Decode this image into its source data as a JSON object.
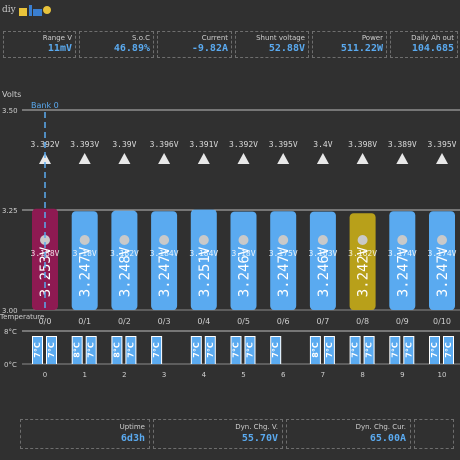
{
  "app": {
    "logo_text": "diy",
    "colors": {
      "accent": "#5aaaf0",
      "highlight_magenta": "#8e1a52",
      "highlight_gold": "#b8a01a"
    }
  },
  "stats": [
    {
      "label": "Range V",
      "value": "11mV"
    },
    {
      "label": "S.o.C",
      "value": "46.89%"
    },
    {
      "label": "Current",
      "value": "-9.82A"
    },
    {
      "label": "Shunt voltage",
      "value": "52.88V"
    },
    {
      "label": "Power",
      "value": "511.22W"
    },
    {
      "label": "Daily Ah out",
      "value": "104.685"
    }
  ],
  "footer": [
    {
      "label": "Uptime",
      "value": "6d3h"
    },
    {
      "label": "Dyn. Chg. V.",
      "value": "55.70V"
    },
    {
      "label": "Dyn. Chg. Cur.",
      "value": "65.00A"
    }
  ],
  "chart_data": {
    "type": "bar",
    "title": "",
    "ylabel": "Volts",
    "ylim": [
      3.0,
      3.5
    ],
    "yticks": [
      "3.50",
      "3.25",
      "3.00"
    ],
    "series_label": "Bank 0",
    "categories": [
      "0/0",
      "0/1",
      "0/2",
      "0/3",
      "0/4",
      "0/5",
      "0/6",
      "0/7",
      "0/8",
      "0/9",
      "0/10"
    ],
    "values": [
      3.253,
      3.247,
      3.248,
      3.247,
      3.251,
      3.246,
      3.247,
      3.246,
      3.242,
      3.247,
      3.247
    ],
    "bar_labels": [
      "3.253V",
      "3.247V",
      "3.248V",
      "3.247V",
      "3.251V",
      "3.246V",
      "3.247V",
      "3.246V",
      "3.242V",
      "3.247V",
      "3.247V"
    ],
    "highlight": {
      "0/0": "lowest-range",
      "0/8": "minimum"
    },
    "range_labels": [
      "3.392V",
      "3.393V",
      "3.39V",
      "3.396V",
      "3.391V",
      "3.392V",
      "3.395V",
      "3.4V",
      "3.398V",
      "3.389V",
      "3.395V"
    ],
    "range_dots": [
      "3.188V",
      "3.18V",
      "3.182V",
      "3.184V",
      "3.184V",
      "3.18V",
      "3.175V",
      "3.163V",
      "3.162V",
      "3.174V",
      "3.174V"
    ],
    "temperature": {
      "label": "Temperature",
      "yticks": [
        "8°C",
        "0°C"
      ],
      "module_labels": [
        "0",
        "1",
        "2",
        "3",
        "4",
        "5",
        "6",
        "7",
        "8",
        "9",
        "10"
      ],
      "internal": [
        "7°C",
        "8°C",
        "8°C",
        "7°C",
        "7°C",
        "7°C",
        "7°C",
        "8°C",
        "7°C",
        "7°C",
        "7°C"
      ],
      "external": [
        "7°C",
        "7°C",
        "7°C",
        "",
        "7°C",
        "7°C",
        "",
        "7°C",
        "7°C",
        "7°C",
        "7°C"
      ]
    }
  }
}
